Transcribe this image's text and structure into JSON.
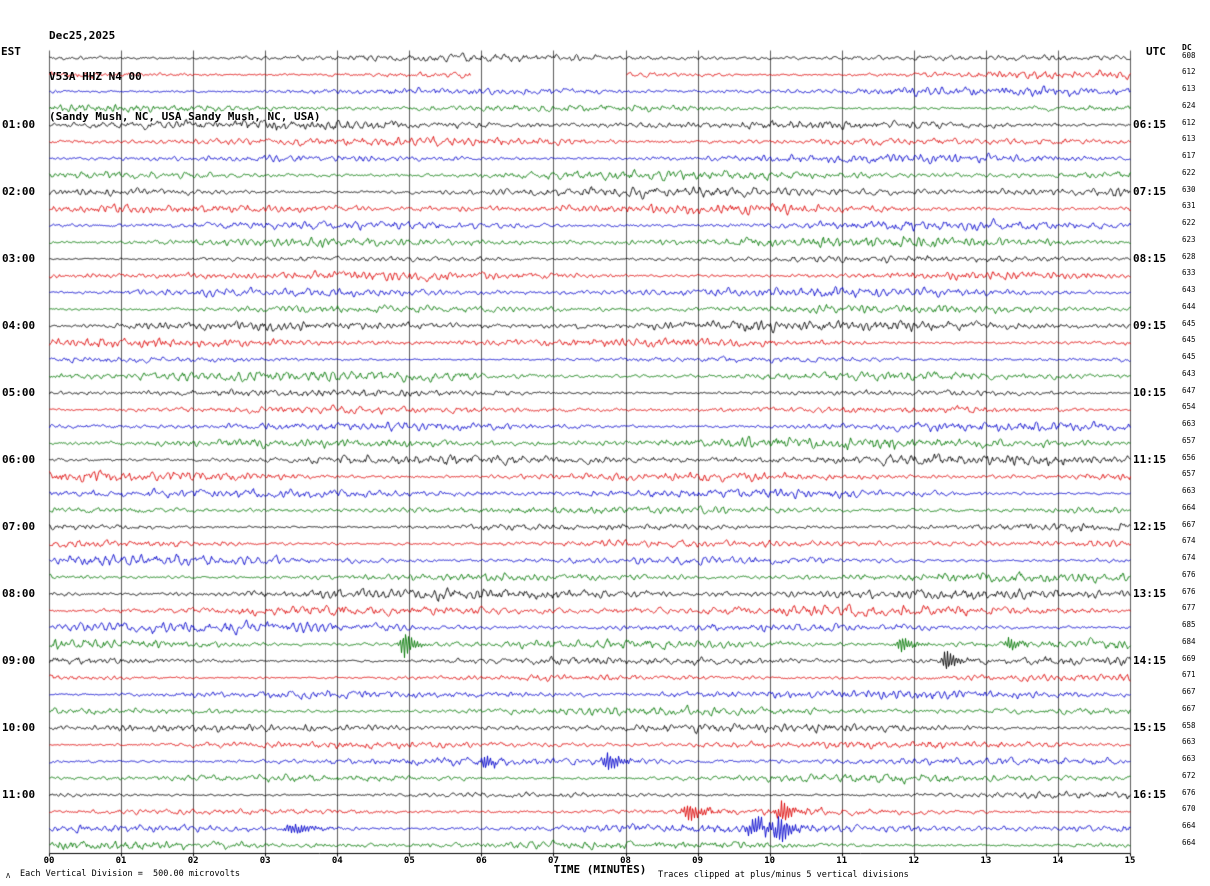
{
  "header": {
    "date": "Dec25,2025",
    "station": "V53A HHZ N4 00",
    "location": "(Sandy Mush, NC, USA Sandy Mush, NC, USA)"
  },
  "axes": {
    "left_label": "EST",
    "right_label": "UTC",
    "dc_label": "DC",
    "x_title": "TIME (MINUTES)",
    "x_ticks": [
      "00",
      "01",
      "02",
      "03",
      "04",
      "05",
      "06",
      "07",
      "08",
      "09",
      "10",
      "11",
      "12",
      "13",
      "14",
      "15"
    ],
    "left_times": [
      "01:00",
      "02:00",
      "03:00",
      "04:00",
      "05:00",
      "06:00",
      "07:00",
      "08:00",
      "09:00",
      "10:00",
      "11:00"
    ],
    "right_times": [
      "06:15",
      "07:15",
      "08:15",
      "09:15",
      "10:15",
      "11:15",
      "12:15",
      "13:15",
      "14:15",
      "15:15",
      "16:15"
    ]
  },
  "footer": {
    "scale_mark": "Λ",
    "scale_note": "Each Vertical Division =  500.00 microvolts",
    "clip_note": "Traces clipped at plus/minus 5 vertical divisions"
  },
  "chart_data": {
    "type": "line",
    "kind": "seismogram-helicorder",
    "title": "V53A HHZ N4 00 (Sandy Mush, NC, USA)",
    "x_axis_minutes": [
      0,
      15
    ],
    "minutes_per_line": 15,
    "rows": 48,
    "traces_per_hour": 4,
    "start_time_est": "00:00",
    "hour_labels_est": [
      "01:00",
      "02:00",
      "03:00",
      "04:00",
      "05:00",
      "06:00",
      "07:00",
      "08:00",
      "09:00",
      "10:00",
      "11:00"
    ],
    "hour_labels_utc": [
      "06:15",
      "07:15",
      "08:15",
      "09:15",
      "10:15",
      "11:15",
      "12:15",
      "13:15",
      "14:15",
      "15:15",
      "16:15"
    ],
    "colors_cycle": [
      "#000000",
      "#dd0000",
      "#0000cc",
      "#007700"
    ],
    "grid_color": "#5a5a5a",
    "row_dc_values": [
      608,
      612,
      613,
      624,
      612,
      613,
      617,
      622,
      630,
      631,
      622,
      623,
      628,
      633,
      643,
      644,
      645,
      645,
      645,
      643,
      647,
      654,
      663,
      657,
      656,
      657,
      663,
      664,
      667,
      674,
      674,
      676,
      676,
      677,
      685,
      684,
      669,
      671,
      667,
      667,
      658,
      663,
      663,
      672,
      676,
      670,
      664,
      664
    ],
    "vertical_division_microvolts": 500.0,
    "clip_divisions": 5,
    "events": [
      {
        "row": 35,
        "minute": 4.93,
        "amp": 14,
        "dur": 0.12
      },
      {
        "row": 35,
        "minute": 11.83,
        "amp": 8,
        "dur": 0.14
      },
      {
        "row": 35,
        "minute": 13.33,
        "amp": 7,
        "dur": 0.12
      },
      {
        "row": 36,
        "minute": 12.45,
        "amp": 12,
        "dur": 0.12
      },
      {
        "row": 42,
        "minute": 6.05,
        "amp": 8,
        "dur": 0.12
      },
      {
        "row": 42,
        "minute": 7.76,
        "amp": 10,
        "dur": 0.15
      },
      {
        "row": 45,
        "minute": 8.89,
        "amp": 9,
        "dur": 0.18
      },
      {
        "row": 45,
        "minute": 10.17,
        "amp": 11,
        "dur": 0.15
      },
      {
        "row": 46,
        "minute": 3.4,
        "amp": 5,
        "dur": 0.3
      },
      {
        "row": 46,
        "minute": 9.8,
        "amp": 9,
        "dur": 0.25
      },
      {
        "row": 46,
        "minute": 10.15,
        "amp": 12,
        "dur": 0.15
      }
    ],
    "gaps": [
      {
        "row": 1,
        "from_minute": 5.85,
        "to_minute": 8.0
      }
    ]
  }
}
